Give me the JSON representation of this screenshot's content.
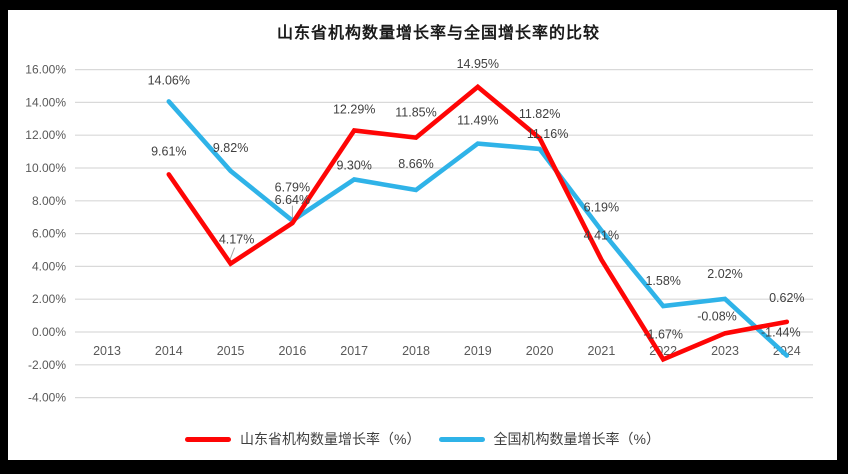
{
  "chart_data": {
    "type": "line",
    "title": "山东省机构数量增长率与全国增长率的比较",
    "categories": [
      "2013",
      "2014",
      "2015",
      "2016",
      "2017",
      "2018",
      "2019",
      "2020",
      "2021",
      "2022",
      "2023",
      "2024"
    ],
    "y_ticks": [
      "16.00%",
      "14.00%",
      "12.00%",
      "10.00%",
      "8.00%",
      "6.00%",
      "4.00%",
      "2.00%",
      "0.00%",
      "-2.00%",
      "-4.00%"
    ],
    "ylim": [
      -4,
      16
    ],
    "y_step": 2,
    "grid": true,
    "legend_position": "bottom",
    "grid_color": "#d9d9d9",
    "axis_label_color": "#595959",
    "data_label_color": "#404040",
    "series": [
      {
        "name": "山东省机构数量增长率（%）",
        "color": "#fe0505",
        "start_category_index": 1,
        "values": [
          9.61,
          4.17,
          6.64,
          12.29,
          11.85,
          14.95,
          11.82,
          4.41,
          -1.67,
          -0.08,
          0.62
        ],
        "labels": [
          "9.61%",
          "4.17%",
          "6.64%",
          "12.29%",
          "11.85%",
          "14.95%",
          "11.82%",
          "4.41%",
          "-1.67%",
          "-0.08%",
          "0.62%"
        ]
      },
      {
        "name": "全国机构数量增长率（%）",
        "color": "#2fb3e8",
        "start_category_index": 1,
        "values": [
          14.06,
          9.82,
          6.79,
          9.3,
          8.66,
          11.49,
          11.16,
          6.19,
          1.58,
          2.02,
          -1.44
        ],
        "labels": [
          "14.06%",
          "9.82%",
          "6.79%",
          "9.30%",
          "8.66%",
          "11.49%",
          "11.16%",
          "6.19%",
          "1.58%",
          "2.02%",
          "-1.44%"
        ]
      }
    ]
  }
}
